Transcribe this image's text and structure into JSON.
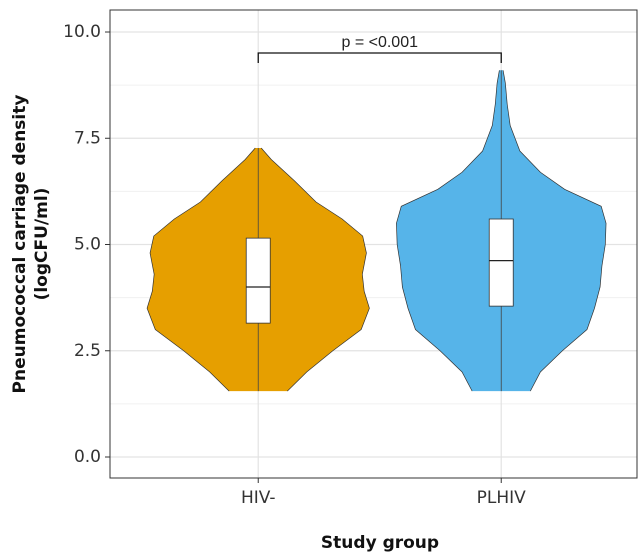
{
  "chart_data": {
    "type": "violin",
    "y_label": [
      "Pneumococcal carriage density",
      "(logCFU/ml)"
    ],
    "x_label": "Study group",
    "annotation": "p = <0.001",
    "categories": [
      "HIV-",
      "PLHIV"
    ],
    "series": [
      {
        "name": "HIV-",
        "color": "#E69F00",
        "min": 1.55,
        "q1": 3.15,
        "median": 4.0,
        "q3": 5.15,
        "max": 7.27,
        "density_at": [
          1.55,
          2.0,
          2.5,
          3.0,
          3.5,
          3.9,
          4.3,
          4.8,
          5.2,
          5.6,
          6.0,
          6.5,
          7.0,
          7.27
        ],
        "density": [
          0.078,
          0.13,
          0.2,
          0.276,
          0.298,
          0.284,
          0.279,
          0.29,
          0.28,
          0.225,
          0.155,
          0.097,
          0.035,
          0.008
        ]
      },
      {
        "name": "PLHIV",
        "color": "#56B4E9",
        "min": 1.55,
        "q1": 3.55,
        "median": 4.62,
        "q3": 5.6,
        "max": 9.1,
        "density_at": [
          1.55,
          2.0,
          2.5,
          3.0,
          3.5,
          4.0,
          4.5,
          5.0,
          5.5,
          5.9,
          6.3,
          6.7,
          7.2,
          7.8,
          8.3,
          8.8,
          9.1
        ],
        "density": [
          0.078,
          0.105,
          0.164,
          0.23,
          0.25,
          0.265,
          0.27,
          0.279,
          0.281,
          0.268,
          0.17,
          0.105,
          0.05,
          0.024,
          0.016,
          0.011,
          0.005
        ]
      }
    ],
    "ylim": [
      -0.494,
      10.518
    ],
    "yticks": [
      {
        "value": 0,
        "label": "0.0"
      },
      {
        "value": 2.5,
        "label": "2.5"
      },
      {
        "value": 5,
        "label": "5.0"
      },
      {
        "value": 7.5,
        "label": "7.5"
      },
      {
        "value": 10,
        "label": "10.0"
      }
    ],
    "minor_yticks": [
      1.25,
      3.75,
      6.25,
      8.75
    ],
    "grid": true
  }
}
